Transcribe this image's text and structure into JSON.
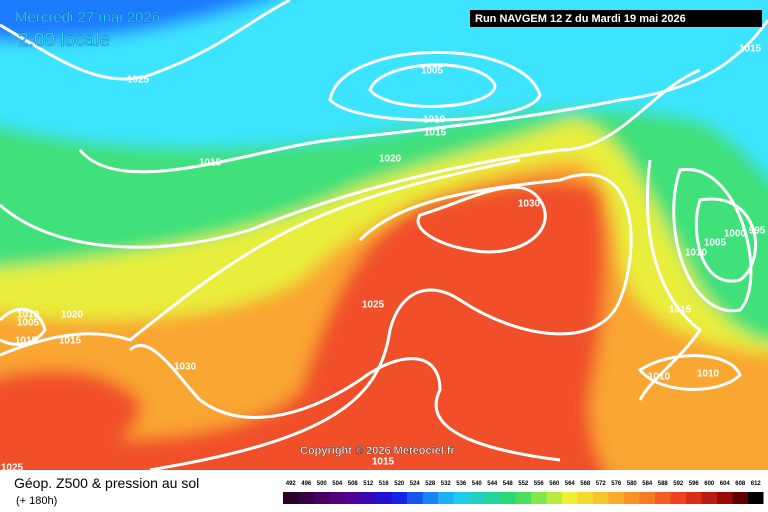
{
  "header": {
    "date": "Mercredi 27 mai 2026",
    "time": "2:00 locale",
    "run": "Run NAVGEM 12 Z du Mardi 19 mai 2026"
  },
  "copyright": "Copyright © 2026 Meteociel.fr",
  "footer": {
    "title": "Géop. Z500 & pression au sol",
    "lead": "(+ 180h)"
  },
  "isobar_labels": [
    "1025",
    "1005",
    "1010",
    "1015",
    "1015",
    "1015",
    "1020",
    "1030",
    "1005",
    "1000",
    "995",
    "1010",
    "1015",
    "1025",
    "1010",
    "1010",
    "1020",
    "1015",
    "1010",
    "1005",
    "1030",
    "1025",
    "1015",
    "1015"
  ],
  "legend": {
    "labels": [
      "492",
      "496",
      "500",
      "504",
      "508",
      "512",
      "516",
      "520",
      "524",
      "528",
      "532",
      "536",
      "540",
      "544",
      "548",
      "552",
      "556",
      "560",
      "564",
      "568",
      "572",
      "576",
      "580",
      "584",
      "588",
      "592",
      "596",
      "600",
      "604",
      "608",
      "612"
    ]
  }
}
